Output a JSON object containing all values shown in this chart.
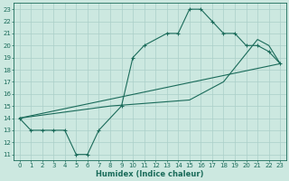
{
  "title": "",
  "xlabel": "Humidex (Indice chaleur)",
  "bg_color": "#cce8e0",
  "line_color": "#1a6b5a",
  "grid_color": "#aacfc8",
  "xlim": [
    -0.5,
    23.5
  ],
  "ylim": [
    10.5,
    23.5
  ],
  "xticks": [
    0,
    1,
    2,
    3,
    4,
    5,
    6,
    7,
    8,
    9,
    10,
    11,
    12,
    13,
    14,
    15,
    16,
    17,
    18,
    19,
    20,
    21,
    22,
    23
  ],
  "yticks": [
    11,
    12,
    13,
    14,
    15,
    16,
    17,
    18,
    19,
    20,
    21,
    22,
    23
  ],
  "line1_x": [
    0,
    1,
    2,
    3,
    4,
    5,
    6,
    7,
    9,
    10,
    11,
    13,
    14,
    15,
    16,
    17,
    18,
    19,
    20,
    21,
    22,
    23
  ],
  "line1_y": [
    14,
    13,
    13,
    13,
    13,
    11,
    11,
    13,
    15,
    19,
    20,
    21,
    21,
    23,
    23,
    22,
    21,
    21,
    20,
    20,
    19.5,
    18.5
  ],
  "line2_x": [
    0,
    23
  ],
  "line2_y": [
    14,
    18.5
  ],
  "line3_x": [
    0,
    8,
    15,
    18,
    21,
    22,
    23
  ],
  "line3_y": [
    14,
    15,
    15.5,
    17,
    20.5,
    20,
    18.5
  ]
}
